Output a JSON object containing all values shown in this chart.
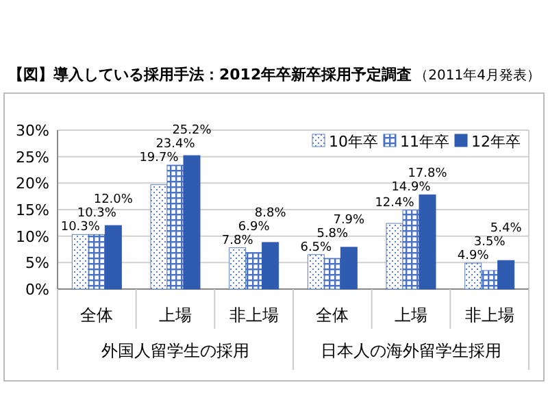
{
  "chart_data": {
    "type": "bar",
    "title": "【図】導入している採用手法：2012年卒新卒採用予定調査",
    "subtitle": "（2011年4月発表）",
    "categories": [
      "全体",
      "上場",
      "非上場",
      "全体",
      "上場",
      "非上場"
    ],
    "series": [
      {
        "name": "10年卒",
        "color": "#5b7fc9",
        "values": [
          10.3,
          19.7,
          7.8,
          6.5,
          12.4,
          4.9
        ],
        "value_labels": [
          "10.3%",
          "19.7%",
          "7.8%",
          "6.5%",
          "12.4%",
          "4.9%"
        ]
      },
      {
        "name": "11年卒",
        "color": "#4a72c4",
        "values": [
          10.3,
          23.4,
          6.9,
          5.8,
          14.9,
          3.5
        ],
        "value_labels": [
          "10.3%",
          "23.4%",
          "6.9%",
          "5.8%",
          "14.9%",
          "3.5%"
        ]
      },
      {
        "name": "12年卒",
        "color": "#2f5bb0",
        "values": [
          12.0,
          25.2,
          8.8,
          7.9,
          17.8,
          5.4
        ],
        "value_labels": [
          "12.0%",
          "25.2%",
          "8.8%",
          "7.9%",
          "17.8%",
          "5.4%"
        ]
      }
    ],
    "ylim": [
      0,
      30
    ],
    "yticks": [
      {
        "value": 0,
        "label": "0%"
      },
      {
        "value": 5,
        "label": "5%"
      },
      {
        "value": 10,
        "label": "10%"
      },
      {
        "value": 15,
        "label": "15%"
      },
      {
        "value": 20,
        "label": "20%"
      },
      {
        "value": 25,
        "label": "25%"
      },
      {
        "value": 30,
        "label": "30%"
      }
    ],
    "grid": "y",
    "legend": "top right",
    "annotations": [
      "外国人留学生の採用",
      "日本人の海外留学生採用"
    ]
  }
}
